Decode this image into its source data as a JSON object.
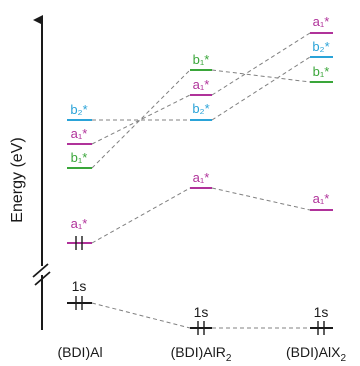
{
  "y_axis_label": "Energy (eV)",
  "colors": {
    "a1": "#b0329a",
    "b1": "#3aa63a",
    "b2": "#2aa3d8",
    "core": "#1a1a1a",
    "connector": "#808080"
  },
  "columns": [
    {
      "label": "(BDI)Al",
      "levels": [
        {
          "id": "b2_star",
          "label": "b₂*",
          "orbital": "b2"
        },
        {
          "id": "a1_star_upper",
          "label": "a₁*",
          "orbital": "a1"
        },
        {
          "id": "b1_star",
          "label": "b₁*",
          "orbital": "b1"
        },
        {
          "id": "a1_star_lower",
          "label": "a₁*",
          "orbital": "a1",
          "electrons": 2
        },
        {
          "id": "core_1s",
          "label": "1s",
          "orbital": "core",
          "electrons": 2
        }
      ]
    },
    {
      "label": "(BDI)AlR₂",
      "levels": [
        {
          "id": "b1_star",
          "label": "b₁*",
          "orbital": "b1"
        },
        {
          "id": "a1_star_upper",
          "label": "a₁*",
          "orbital": "a1"
        },
        {
          "id": "b2_star",
          "label": "b₂*",
          "orbital": "b2"
        },
        {
          "id": "a1_star_lower",
          "label": "a₁*",
          "orbital": "a1"
        },
        {
          "id": "core_1s",
          "label": "1s",
          "orbital": "core",
          "electrons": 2
        }
      ]
    },
    {
      "label": "(BDI)AlX₂",
      "levels": [
        {
          "id": "a1_star_upper",
          "label": "a₁*",
          "orbital": "a1"
        },
        {
          "id": "b2_star",
          "label": "b₂*",
          "orbital": "b2"
        },
        {
          "id": "b1_star",
          "label": "b₁*",
          "orbital": "b1"
        },
        {
          "id": "a1_star_lower",
          "label": "a₁*",
          "orbital": "a1"
        },
        {
          "id": "core_1s",
          "label": "1s",
          "orbital": "core",
          "electrons": 2
        }
      ]
    }
  ]
}
